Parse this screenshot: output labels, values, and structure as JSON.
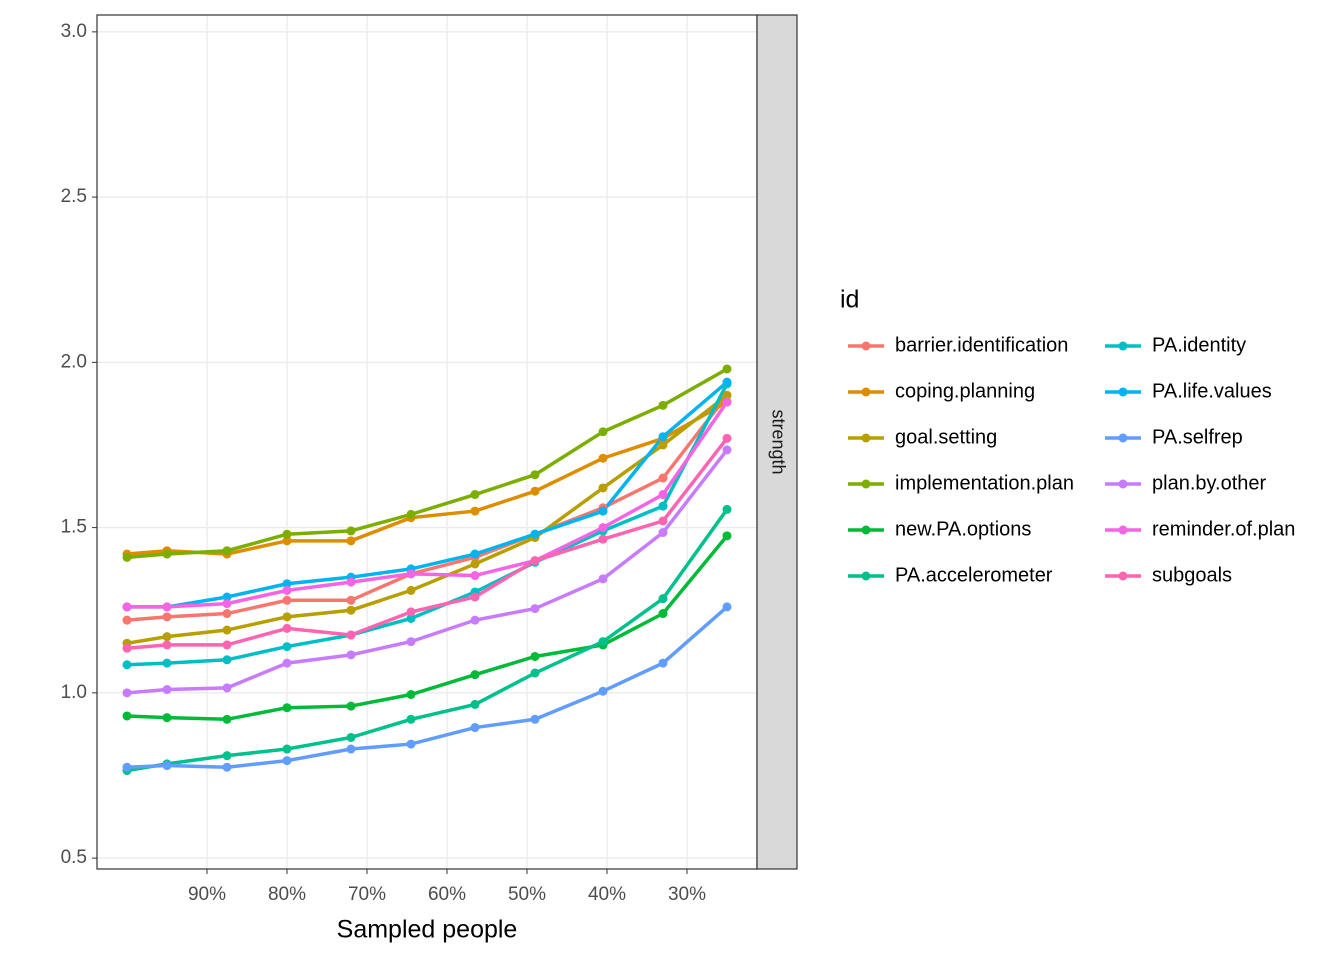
{
  "chart_data": {
    "type": "line",
    "x_label": "Sampled people",
    "facet_label": "strength",
    "legend_title": "id",
    "x": [
      1.0,
      0.95,
      0.875,
      0.8,
      0.72,
      0.645,
      0.565,
      0.49,
      0.405,
      0.33,
      0.25
    ],
    "xlim": [
      1.0375,
      0.2125
    ],
    "xticks": [
      {
        "value": 0.9,
        "label": "90%"
      },
      {
        "value": 0.8,
        "label": "80%"
      },
      {
        "value": 0.7,
        "label": "70%"
      },
      {
        "value": 0.6,
        "label": "60%"
      },
      {
        "value": 0.5,
        "label": "50%"
      },
      {
        "value": 0.4,
        "label": "40%"
      },
      {
        "value": 0.3,
        "label": "30%"
      }
    ],
    "ylim": [
      0.467,
      3.051
    ],
    "yticks": [
      0.5,
      {
        "value": 1,
        "label": "1.0"
      },
      1.5,
      {
        "value": 2,
        "label": "2.0"
      },
      2.5,
      {
        "value": 3,
        "label": "3.0"
      }
    ],
    "grid": true,
    "series": [
      {
        "name": "barrier.identification",
        "color": "#F8766D",
        "values": [
          1.22,
          1.23,
          1.24,
          1.28,
          1.28,
          1.36,
          1.41,
          1.48,
          1.56,
          1.65,
          1.9
        ]
      },
      {
        "name": "coping.planning",
        "color": "#DE8C00",
        "values": [
          1.42,
          1.43,
          1.42,
          1.46,
          1.46,
          1.53,
          1.55,
          1.61,
          1.71,
          1.77,
          1.88
        ]
      },
      {
        "name": "goal.setting",
        "color": "#B79F00",
        "values": [
          1.15,
          1.17,
          1.19,
          1.23,
          1.25,
          1.31,
          1.39,
          1.47,
          1.62,
          1.75,
          1.9
        ]
      },
      {
        "name": "implementation.plan",
        "color": "#7CAE00",
        "values": [
          1.41,
          1.42,
          1.43,
          1.48,
          1.49,
          1.54,
          1.6,
          1.66,
          1.79,
          1.87,
          1.98
        ]
      },
      {
        "name": "new.PA.options",
        "color": "#00BA38",
        "values": [
          0.93,
          0.925,
          0.92,
          0.955,
          0.96,
          0.995,
          1.055,
          1.11,
          1.145,
          1.24,
          1.475
        ]
      },
      {
        "name": "PA.accelerometer",
        "color": "#00C08B",
        "values": [
          0.765,
          0.785,
          0.81,
          0.83,
          0.865,
          0.92,
          0.965,
          1.06,
          1.155,
          1.285,
          1.555
        ]
      },
      {
        "name": "PA.identity",
        "color": "#00BFC4",
        "values": [
          1.085,
          1.09,
          1.1,
          1.14,
          1.175,
          1.225,
          1.305,
          1.395,
          1.49,
          1.565,
          1.935
        ]
      },
      {
        "name": "PA.life.values",
        "color": "#00B4F0",
        "values": [
          1.26,
          1.26,
          1.29,
          1.33,
          1.35,
          1.375,
          1.42,
          1.48,
          1.55,
          1.775,
          1.94
        ]
      },
      {
        "name": "PA.selfrep",
        "color": "#619CFF",
        "values": [
          0.775,
          0.78,
          0.775,
          0.795,
          0.83,
          0.845,
          0.895,
          0.92,
          1.005,
          1.09,
          1.26
        ]
      },
      {
        "name": "plan.by.other",
        "color": "#C77CFF",
        "values": [
          1.0,
          1.01,
          1.015,
          1.09,
          1.115,
          1.155,
          1.22,
          1.255,
          1.345,
          1.485,
          1.735
        ]
      },
      {
        "name": "reminder.of.plan",
        "color": "#F564E3",
        "values": [
          1.26,
          1.26,
          1.27,
          1.31,
          1.335,
          1.36,
          1.355,
          1.4,
          1.5,
          1.6,
          1.88
        ]
      },
      {
        "name": "subgoals",
        "color": "#FF64B0",
        "values": [
          1.135,
          1.145,
          1.145,
          1.195,
          1.175,
          1.245,
          1.29,
          1.4,
          1.465,
          1.52,
          1.77
        ]
      }
    ]
  }
}
